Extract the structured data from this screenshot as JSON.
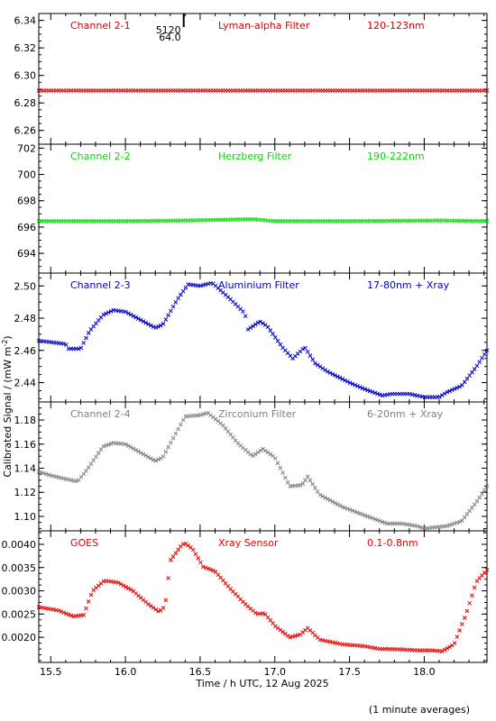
{
  "xlabel": "Time / h UTC, 12 Aug 2025",
  "ylabel": "Calibrated Signal / (mW m",
  "ylabel_exp": "-2",
  "ylabel_close": ")",
  "footer": "(1 minute averages)",
  "marker": {
    "x": 16.39,
    "label_top": "5120",
    "label_bottom": "64.0"
  },
  "chart_data": [
    {
      "type": "scatter",
      "channel": "Channel 2-1",
      "filter": "Lyman-alpha Filter",
      "band": "120-123nm",
      "color": "#dd0000",
      "ylim": [
        6.25,
        6.345
      ],
      "yticks": [
        6.26,
        6.28,
        6.3,
        6.32,
        6.34
      ],
      "ytick_labels": [
        "6.26",
        "6.28",
        "6.30",
        "6.32",
        "6.34"
      ],
      "xlim": [
        15.42,
        18.42
      ],
      "x": [
        15.42,
        16.0,
        16.5,
        17.0,
        17.5,
        18.0,
        18.42
      ],
      "y": [
        6.289,
        6.289,
        6.289,
        6.289,
        6.289,
        6.289,
        6.289
      ]
    },
    {
      "type": "scatter",
      "channel": "Channel 2-2",
      "filter": "Herzberg Filter",
      "band": "190-222nm",
      "color": "#00dd00",
      "ylim": [
        692.5,
        702.3
      ],
      "yticks": [
        694,
        696,
        698,
        700,
        702
      ],
      "ytick_labels": [
        "694",
        "696",
        "698",
        "700",
        "702"
      ],
      "xlim": [
        15.42,
        18.42
      ],
      "x": [
        15.42,
        16.0,
        16.42,
        16.85,
        17.0,
        17.5,
        18.1,
        18.42
      ],
      "y": [
        696.45,
        696.45,
        696.5,
        696.6,
        696.45,
        696.45,
        696.5,
        696.45
      ]
    },
    {
      "type": "scatter",
      "channel": "Channel 2-3",
      "filter": "Aluminium Filter",
      "band": "17-80nm + Xray",
      "color": "#0000cc",
      "ylim": [
        2.428,
        2.508
      ],
      "yticks": [
        2.44,
        2.46,
        2.48,
        2.5
      ],
      "ytick_labels": [
        "2.44",
        "2.46",
        "2.48",
        "2.50"
      ],
      "xlim": [
        15.42,
        18.42
      ],
      "x": [
        15.42,
        15.6,
        15.62,
        15.7,
        15.76,
        15.85,
        15.92,
        16.0,
        16.1,
        16.2,
        16.25,
        16.35,
        16.42,
        16.5,
        16.58,
        16.7,
        16.8,
        16.82,
        16.9,
        16.95,
        17.05,
        17.12,
        17.2,
        17.27,
        17.35,
        17.5,
        17.6,
        17.72,
        17.78,
        17.9,
        18.0,
        18.1,
        18.15,
        18.25,
        18.35,
        18.42
      ],
      "y": [
        2.466,
        2.464,
        2.461,
        2.461,
        2.472,
        2.482,
        2.485,
        2.484,
        2.479,
        2.474,
        2.476,
        2.492,
        2.501,
        2.5,
        2.502,
        2.492,
        2.483,
        2.473,
        2.478,
        2.475,
        2.462,
        2.455,
        2.462,
        2.452,
        2.447,
        2.44,
        2.436,
        2.432,
        2.433,
        2.433,
        2.431,
        2.431,
        2.434,
        2.438,
        2.45,
        2.46
      ]
    },
    {
      "type": "scatter",
      "channel": "Channel 2-4",
      "filter": "Zirconium Filter",
      "band": "6-20nm + Xray",
      "color": "#808080",
      "ylim": [
        1.088,
        1.195
      ],
      "yticks": [
        1.1,
        1.12,
        1.14,
        1.16,
        1.18
      ],
      "ytick_labels": [
        "1.10",
        "1.12",
        "1.14",
        "1.16",
        "1.18"
      ],
      "xlim": [
        15.42,
        18.42
      ],
      "x": [
        15.42,
        15.5,
        15.6,
        15.68,
        15.75,
        15.85,
        15.92,
        16.0,
        16.1,
        16.2,
        16.25,
        16.32,
        16.4,
        16.5,
        16.55,
        16.65,
        16.75,
        16.85,
        16.92,
        17.0,
        17.1,
        17.18,
        17.22,
        17.3,
        17.45,
        17.6,
        17.75,
        17.85,
        17.95,
        18.0,
        18.15,
        18.25,
        18.35,
        18.42
      ],
      "y": [
        1.137,
        1.134,
        1.131,
        1.129,
        1.14,
        1.158,
        1.161,
        1.16,
        1.153,
        1.146,
        1.149,
        1.165,
        1.183,
        1.184,
        1.186,
        1.176,
        1.161,
        1.15,
        1.156,
        1.149,
        1.125,
        1.126,
        1.133,
        1.118,
        1.108,
        1.101,
        1.094,
        1.094,
        1.092,
        1.09,
        1.092,
        1.096,
        1.112,
        1.125
      ]
    },
    {
      "type": "scatter",
      "channel": "GOES",
      "filter": "Xray Sensor",
      "band": "0.1-0.8nm",
      "color": "#ee0000",
      "ylim": [
        0.00146,
        0.00429
      ],
      "yticks": [
        0.002,
        0.0025,
        0.003,
        0.0035,
        0.004
      ],
      "ytick_labels": [
        "0.0020",
        "0.0025",
        "0.0030",
        "0.0035",
        "0.0040"
      ],
      "xlim": [
        15.42,
        18.42
      ],
      "x": [
        15.42,
        15.55,
        15.65,
        15.72,
        15.78,
        15.86,
        15.95,
        16.05,
        16.15,
        16.22,
        16.25,
        16.27,
        16.3,
        16.38,
        16.4,
        16.45,
        16.52,
        16.6,
        16.7,
        16.8,
        16.88,
        16.93,
        17.0,
        17.1,
        17.17,
        17.22,
        17.3,
        17.45,
        17.6,
        17.7,
        17.85,
        17.95,
        18.05,
        18.12,
        18.2,
        18.28,
        18.35,
        18.42
      ],
      "y": [
        0.00265,
        0.00258,
        0.00245,
        0.00248,
        0.003,
        0.00322,
        0.00318,
        0.003,
        0.00272,
        0.00256,
        0.0026,
        0.0028,
        0.00365,
        0.004,
        0.00402,
        0.0039,
        0.00352,
        0.00342,
        0.00305,
        0.00272,
        0.0025,
        0.00252,
        0.00225,
        0.002,
        0.00206,
        0.0022,
        0.00195,
        0.00185,
        0.00181,
        0.00175,
        0.00174,
        0.00172,
        0.00172,
        0.0017,
        0.00185,
        0.0025,
        0.0032,
        0.00345
      ]
    }
  ],
  "xaxis": {
    "ticks": [
      15.5,
      16.0,
      16.5,
      17.0,
      17.5,
      18.0
    ],
    "tick_labels": [
      "15.5",
      "16.0",
      "16.5",
      "17.0",
      "17.5",
      "18.0"
    ]
  }
}
